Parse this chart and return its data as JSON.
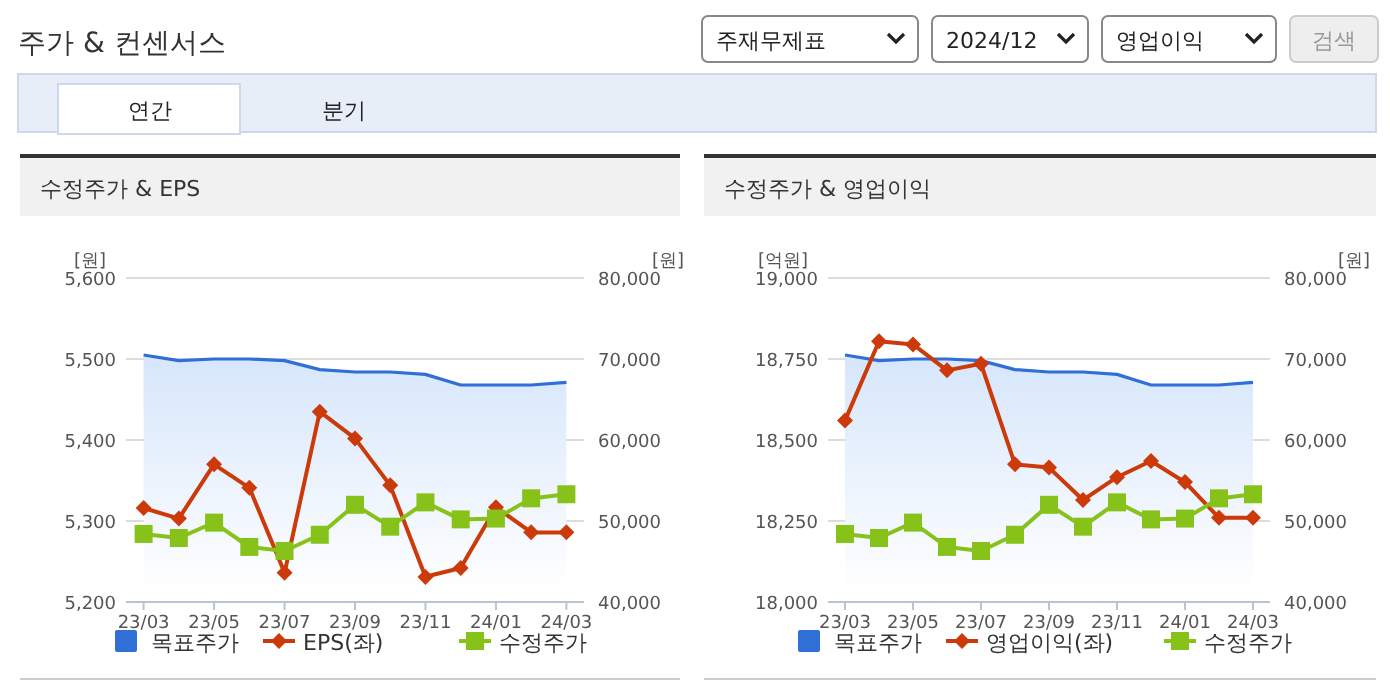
{
  "chart_data": [
    {
      "type": "other",
      "title": "주가 & 컨센서스",
      "annotations": [
        "주재무제표",
        "2024/12",
        "영업이익",
        "검색",
        "연간",
        "분기"
      ]
    },
    {
      "type": "line",
      "title": "수정주가 & EPS",
      "ylabel": "[원]",
      "y2label": "[원]",
      "categories": [
        "23/03",
        null,
        "23/05",
        null,
        "23/07",
        null,
        "23/09",
        null,
        "23/11",
        null,
        "24/01",
        null,
        "24/03"
      ],
      "ylim": [
        5200,
        5600
      ],
      "yticks": [
        {
          "value": 5200,
          "label": "5,200"
        },
        {
          "value": 5300,
          "label": "5,300"
        },
        {
          "value": 5400,
          "label": "5,400"
        },
        {
          "value": 5500,
          "label": "5,500"
        },
        {
          "value": 5600,
          "label": "5,600"
        }
      ],
      "y2lim": [
        40000,
        80000
      ],
      "y2ticks": [
        {
          "value": 40000,
          "label": "40,000"
        },
        {
          "value": 50000,
          "label": "50,000"
        },
        {
          "value": 60000,
          "label": "60,000"
        },
        {
          "value": 70000,
          "label": "70,000"
        },
        {
          "value": 80000,
          "label": "80,000"
        }
      ],
      "grid": "y",
      "legend": "bottom",
      "series": [
        {
          "name": "목표주가",
          "type": "area",
          "axis": "y2",
          "color": "#2f6fd6",
          "values": [
            70500,
            69800,
            70000,
            70000,
            69800,
            68700,
            68400,
            68400,
            68100,
            66800,
            66800,
            66800,
            67100
          ]
        },
        {
          "name": "EPS(좌)",
          "type": "line",
          "marker": "diamond",
          "color": "#cc3a0a",
          "values": [
            5316,
            5303,
            5370,
            5341,
            5236,
            5435,
            5402,
            5344,
            5231,
            5242,
            5317,
            5286,
            5286
          ]
        },
        {
          "name": "수정주가",
          "type": "line",
          "marker": "square",
          "axis": "y2",
          "color": "#86c21a",
          "values": [
            48400,
            47900,
            49800,
            46800,
            46300,
            48300,
            52000,
            49300,
            52300,
            50200,
            50300,
            52800,
            53300
          ]
        }
      ]
    },
    {
      "type": "line",
      "title": "수정주가 & 영업이익",
      "ylabel": "[억원]",
      "y2label": "[원]",
      "categories": [
        "23/03",
        null,
        "23/05",
        null,
        "23/07",
        null,
        "23/09",
        null,
        "23/11",
        null,
        "24/01",
        null,
        "24/03"
      ],
      "ylim": [
        18000,
        19000
      ],
      "yticks": [
        {
          "value": 18000,
          "label": "18,000"
        },
        {
          "value": 18250,
          "label": "18,250"
        },
        {
          "value": 18500,
          "label": "18,500"
        },
        {
          "value": 18750,
          "label": "18,750"
        },
        {
          "value": 19000,
          "label": "19,000"
        }
      ],
      "y2lim": [
        40000,
        80000
      ],
      "y2ticks": [
        {
          "value": 40000,
          "label": "40,000"
        },
        {
          "value": 50000,
          "label": "50,000"
        },
        {
          "value": 60000,
          "label": "60,000"
        },
        {
          "value": 70000,
          "label": "70,000"
        },
        {
          "value": 80000,
          "label": "80,000"
        }
      ],
      "grid": "y",
      "legend": "bottom",
      "series": [
        {
          "name": "목표주가",
          "type": "area",
          "axis": "y2",
          "color": "#2f6fd6",
          "values": [
            70500,
            69800,
            70000,
            70000,
            69800,
            68700,
            68400,
            68400,
            68100,
            66800,
            66800,
            66800,
            67100
          ]
        },
        {
          "name": "영업이익(좌)",
          "type": "line",
          "marker": "diamond",
          "color": "#cc3a0a",
          "values": [
            18560,
            18805,
            18795,
            18715,
            18735,
            18425,
            18415,
            18315,
            18385,
            18435,
            18370,
            18260,
            18260
          ]
        },
        {
          "name": "수정주가",
          "type": "line",
          "marker": "square",
          "axis": "y2",
          "color": "#86c21a",
          "values": [
            48400,
            47900,
            49800,
            46800,
            46300,
            48300,
            52000,
            49300,
            52300,
            50200,
            50300,
            52800,
            53300
          ]
        }
      ]
    }
  ]
}
